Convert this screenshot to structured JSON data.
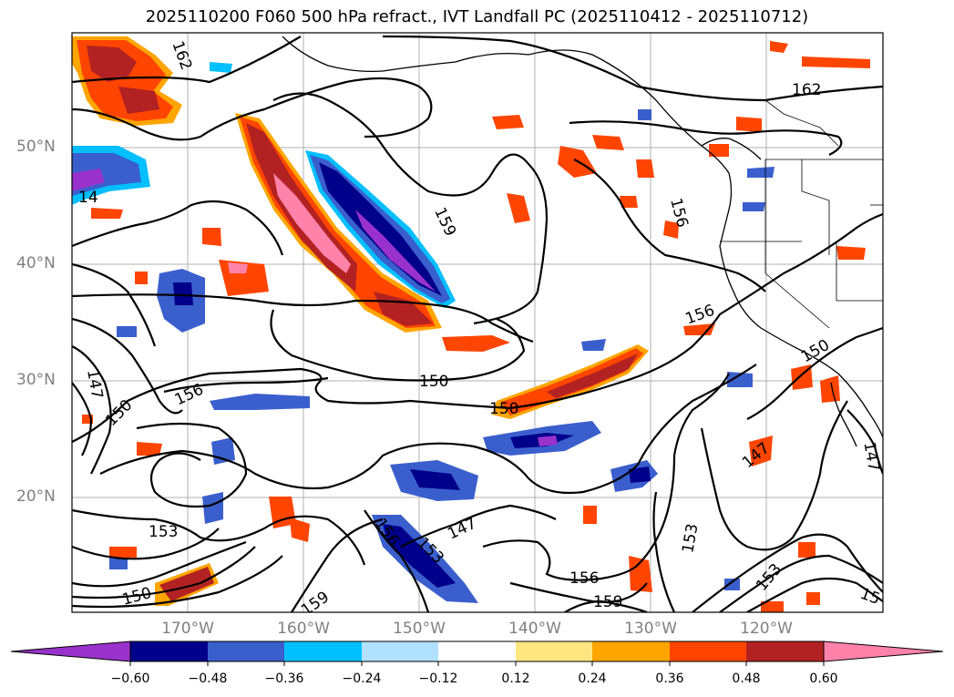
{
  "title": "2025110200 F060 500 hPa refract., IVT Landfall PC (2025110412 - 2025110712)",
  "lat_labels": [
    "50°N",
    "40°N",
    "30°N",
    "20°N"
  ],
  "lon_labels": [
    "170°W",
    "160°W",
    "150°W",
    "140°W",
    "130°W",
    "120°W"
  ],
  "colorbar": {
    "ticks": [
      "−0.60",
      "−0.48",
      "−0.36",
      "−0.24",
      "−0.12",
      "0.12",
      "0.24",
      "0.36",
      "0.48",
      "0.60"
    ],
    "colors": [
      "#9932cc",
      "#00008b",
      "#3a5fcd",
      "#00bfff",
      "#b0e2ff",
      "#ffffff",
      "#ffe680",
      "#ffa500",
      "#ff4500",
      "#b22222",
      "#ff82ab"
    ]
  },
  "contour_labels": [
    "162",
    "162",
    "159",
    "159",
    "159",
    "156",
    "156",
    "156",
    "156",
    "156",
    "153",
    "153",
    "153",
    "153",
    "150",
    "150",
    "150",
    "150",
    "150",
    "147",
    "147",
    "147",
    "147",
    "15",
    "14"
  ]
}
